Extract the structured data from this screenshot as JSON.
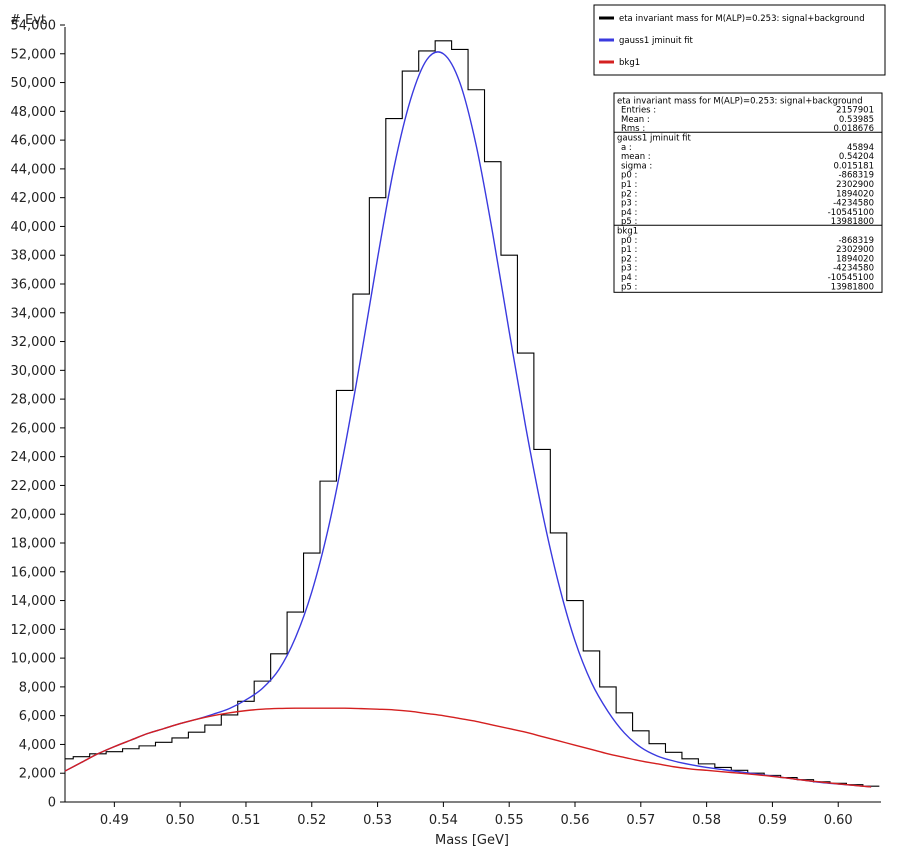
{
  "chart_data": {
    "type": "line",
    "title": "",
    "xlabel": "Mass   [GeV]",
    "ylabel": "# Evt",
    "xlim": [
      0.4825,
      0.6065
    ],
    "ylim": [
      0,
      54000
    ],
    "x_ticks": [
      0.49,
      0.5,
      0.51,
      0.52,
      0.53,
      0.54,
      0.55,
      0.56,
      0.57,
      0.58,
      0.59,
      0.6
    ],
    "x_tick_labels": [
      "0.49",
      "0.50",
      "0.51",
      "0.52",
      "0.53",
      "0.54",
      "0.55",
      "0.56",
      "0.57",
      "0.58",
      "0.59",
      "0.60"
    ],
    "y_ticks": [
      0,
      2000,
      4000,
      6000,
      8000,
      10000,
      12000,
      14000,
      16000,
      18000,
      20000,
      22000,
      24000,
      26000,
      28000,
      30000,
      32000,
      34000,
      36000,
      38000,
      40000,
      42000,
      44000,
      46000,
      48000,
      50000,
      52000,
      54000
    ],
    "y_tick_labels": [
      "0",
      "2,000",
      "4,000",
      "6,000",
      "8,000",
      "10,000",
      "12,000",
      "14,000",
      "16,000",
      "18,000",
      "20,000",
      "22,000",
      "24,000",
      "26,000",
      "28,000",
      "30,000",
      "32,000",
      "34,000",
      "36,000",
      "38,000",
      "40,000",
      "42,000",
      "44,000",
      "46,000",
      "48,000",
      "50,000",
      "52,000",
      "54,000"
    ],
    "grid": false,
    "legend_position": "top-right",
    "series": [
      {
        "name": "eta invariant mass for M(ALP)=0.253: signal+background",
        "style": "step",
        "color": "#000000",
        "x": [
          0.4825,
          0.485,
          0.4875,
          0.49,
          0.4925,
          0.495,
          0.4975,
          0.5,
          0.5025,
          0.505,
          0.5075,
          0.51,
          0.5125,
          0.515,
          0.5175,
          0.52,
          0.5225,
          0.525,
          0.5275,
          0.53,
          0.5325,
          0.535,
          0.5375,
          0.54,
          0.5425,
          0.545,
          0.5475,
          0.55,
          0.5525,
          0.555,
          0.5575,
          0.56,
          0.5625,
          0.565,
          0.5675,
          0.57,
          0.5725,
          0.575,
          0.5775,
          0.58,
          0.5825,
          0.585,
          0.5875,
          0.59,
          0.5925,
          0.595,
          0.5975,
          0.6,
          0.6025,
          0.605
        ],
        "values": [
          3000,
          3150,
          3350,
          3500,
          3700,
          3900,
          4150,
          4450,
          4850,
          5350,
          6050,
          7000,
          8400,
          10300,
          13200,
          17300,
          22300,
          28600,
          35300,
          42000,
          47500,
          50800,
          52200,
          52900,
          52300,
          49500,
          44500,
          38000,
          31200,
          24500,
          18700,
          14000,
          10500,
          8000,
          6200,
          4950,
          4050,
          3450,
          3000,
          2650,
          2400,
          2200,
          2000,
          1850,
          1700,
          1550,
          1400,
          1300,
          1200,
          1100
        ]
      },
      {
        "name": "gauss1 jminuit fit",
        "style": "line",
        "color": "#3a3adf",
        "x": [
          0.4825,
          0.485,
          0.4875,
          0.49,
          0.4925,
          0.495,
          0.4975,
          0.5,
          0.5025,
          0.505,
          0.5075,
          0.51,
          0.5125,
          0.515,
          0.5175,
          0.52,
          0.5225,
          0.525,
          0.5275,
          0.53,
          0.5325,
          0.535,
          0.5375,
          0.54,
          0.5425,
          0.545,
          0.5475,
          0.55,
          0.5525,
          0.555,
          0.5575,
          0.56,
          0.5625,
          0.565,
          0.5675,
          0.57,
          0.5725,
          0.575,
          0.5775,
          0.58,
          0.5825,
          0.585,
          0.5875,
          0.59,
          0.5925,
          0.595,
          0.5975,
          0.6,
          0.6025,
          0.605
        ],
        "values": [
          2150,
          2750,
          3350,
          3850,
          4300,
          4750,
          5100,
          5450,
          5750,
          6100,
          6500,
          7100,
          7900,
          9200,
          11400,
          14600,
          19000,
          24600,
          31000,
          37800,
          44100,
          48800,
          51600,
          52000,
          50000,
          45600,
          39500,
          32700,
          26100,
          20200,
          15200,
          11200,
          8300,
          6300,
          4800,
          3800,
          3200,
          2850,
          2600,
          2400,
          2250,
          2100,
          1950,
          1800,
          1650,
          1500,
          1350,
          1250,
          1150,
          1050
        ]
      },
      {
        "name": "bkg1",
        "style": "line",
        "color": "#d42020",
        "x": [
          0.4825,
          0.485,
          0.4875,
          0.49,
          0.4925,
          0.495,
          0.4975,
          0.5,
          0.5025,
          0.505,
          0.5075,
          0.51,
          0.5125,
          0.515,
          0.5175,
          0.52,
          0.5225,
          0.525,
          0.5275,
          0.53,
          0.5325,
          0.535,
          0.5375,
          0.54,
          0.5425,
          0.545,
          0.5475,
          0.55,
          0.5525,
          0.555,
          0.5575,
          0.56,
          0.5625,
          0.565,
          0.5675,
          0.57,
          0.5725,
          0.575,
          0.5775,
          0.58,
          0.5825,
          0.585,
          0.5875,
          0.59,
          0.5925,
          0.595,
          0.5975,
          0.6,
          0.6025,
          0.605
        ],
        "values": [
          2150,
          2750,
          3350,
          3850,
          4300,
          4750,
          5100,
          5450,
          5750,
          6000,
          6200,
          6350,
          6450,
          6500,
          6520,
          6520,
          6520,
          6520,
          6490,
          6450,
          6400,
          6300,
          6150,
          6000,
          5800,
          5600,
          5350,
          5100,
          4850,
          4550,
          4250,
          3950,
          3650,
          3350,
          3100,
          2850,
          2650,
          2450,
          2300,
          2200,
          2100,
          2000,
          1900,
          1780,
          1650,
          1500,
          1380,
          1260,
          1150,
          1050
        ]
      }
    ],
    "stats_box": {
      "blocks": [
        {
          "title": "eta invariant mass for M(ALP)=0.253: signal+background",
          "rows": [
            {
              "label": "Entries :",
              "value": "2157901"
            },
            {
              "label": "Mean :",
              "value": "0.53985"
            },
            {
              "label": "Rms :",
              "value": "0.018676"
            }
          ]
        },
        {
          "title": "gauss1 jminuit fit",
          "rows": [
            {
              "label": "a :",
              "value": "45894"
            },
            {
              "label": "mean :",
              "value": "0.54204"
            },
            {
              "label": "sigma :",
              "value": "0.015181"
            },
            {
              "label": "p0 :",
              "value": "-868319"
            },
            {
              "label": "p1 :",
              "value": "2302900"
            },
            {
              "label": "p2 :",
              "value": "1894020"
            },
            {
              "label": "p3 :",
              "value": "-4234580"
            },
            {
              "label": "p4 :",
              "value": "-10545100"
            },
            {
              "label": "p5 :",
              "value": "13981800"
            }
          ]
        },
        {
          "title": "bkg1",
          "rows": [
            {
              "label": "p0 :",
              "value": "-868319"
            },
            {
              "label": "p1 :",
              "value": "2302900"
            },
            {
              "label": "p2 :",
              "value": "1894020"
            },
            {
              "label": "p3 :",
              "value": "-4234580"
            },
            {
              "label": "p4 :",
              "value": "-10545100"
            },
            {
              "label": "p5 :",
              "value": "13981800"
            }
          ]
        }
      ]
    }
  }
}
